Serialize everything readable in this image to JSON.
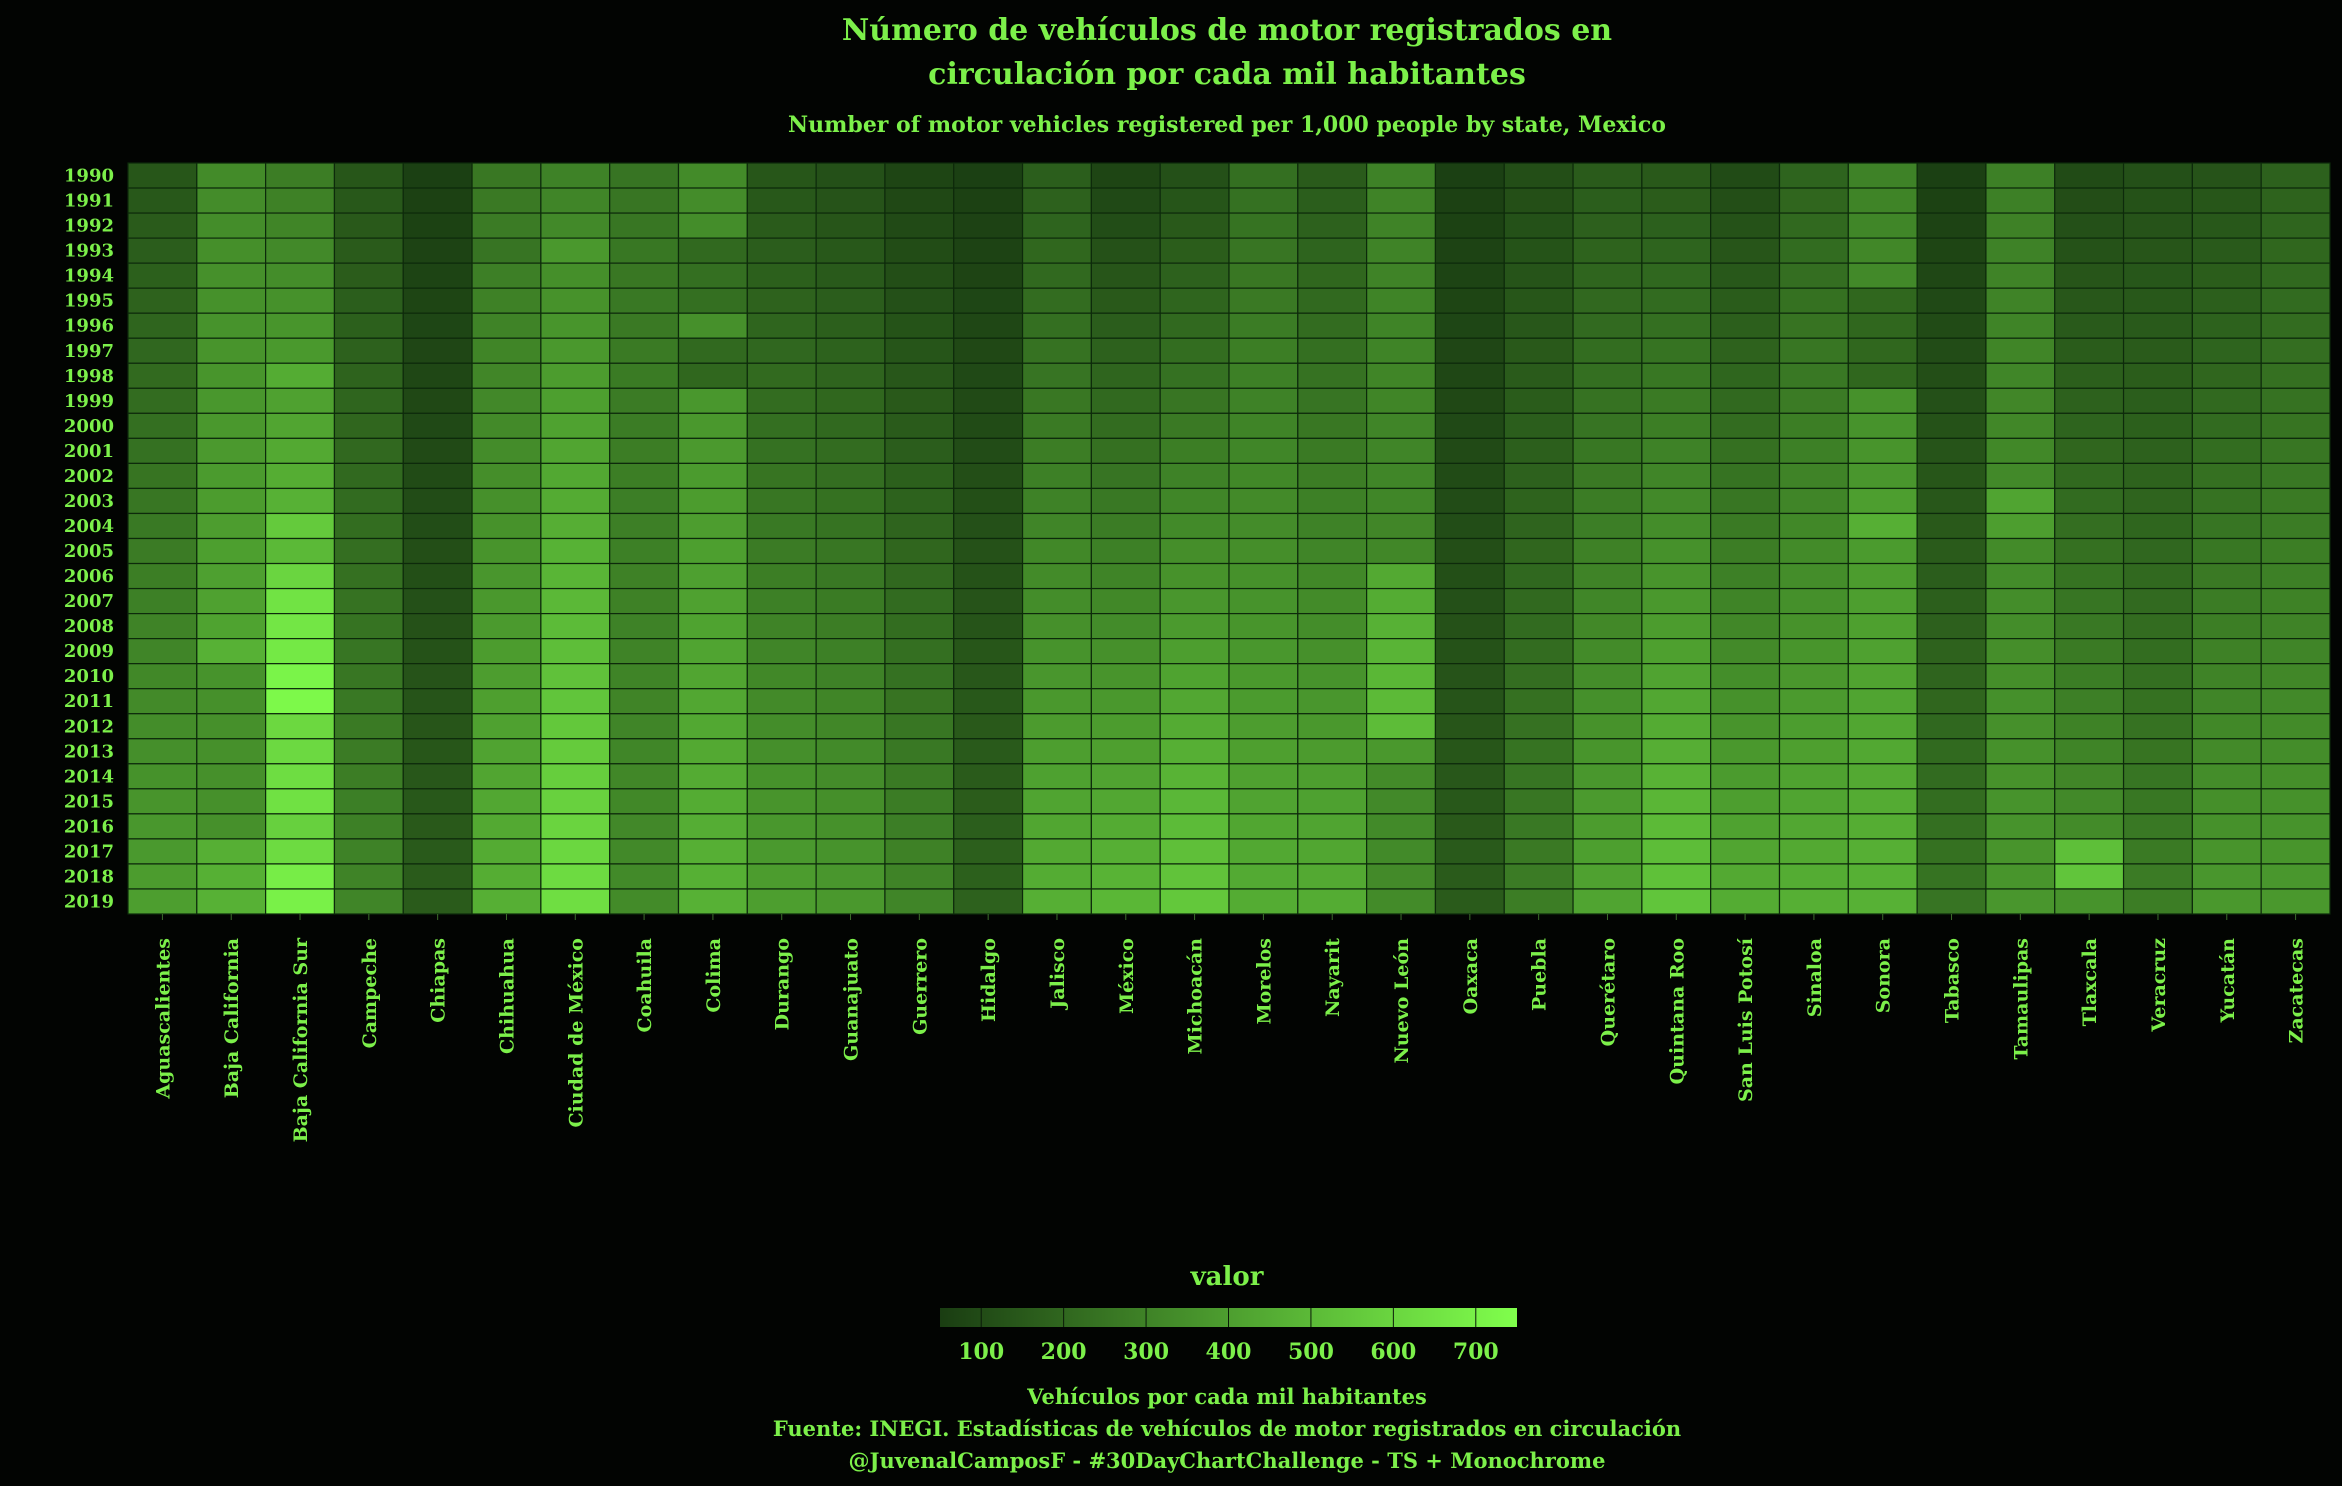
{
  "colors": {
    "background": "#020402",
    "text": "#7cf04a",
    "low": "#1a3d12",
    "high": "#80ff4c"
  },
  "chart_data": {
    "type": "heatmap",
    "title": "Número de vehículos de motor registrados en circulación por cada mil habitantes",
    "title_lines": [
      "Número de vehículos de motor registrados en",
      "circulación por cada mil habitantes"
    ],
    "subtitle": "Number of motor vehicles registered per 1,000 people by state, Mexico",
    "y": [
      "1990",
      "1991",
      "1992",
      "1993",
      "1994",
      "1995",
      "1996",
      "1997",
      "1998",
      "1999",
      "2000",
      "2001",
      "2002",
      "2003",
      "2004",
      "2005",
      "2006",
      "2007",
      "2008",
      "2009",
      "2010",
      "2011",
      "2012",
      "2013",
      "2014",
      "2015",
      "2016",
      "2017",
      "2018",
      "2019"
    ],
    "x": [
      "Aguascalientes",
      "Baja California",
      "Baja California Sur",
      "Campeche",
      "Chiapas",
      "Chihuahua",
      "Ciudad de México",
      "Coahuila",
      "Colima",
      "Durango",
      "Guanajuato",
      "Guerrero",
      "Hidalgo",
      "Jalisco",
      "México",
      "Michoacán",
      "Morelos",
      "Nayarit",
      "Nuevo León",
      "Oaxaca",
      "Puebla",
      "Querétaro",
      "Quintana Roo",
      "San Luis Potosí",
      "Sinaloa",
      "Sonora",
      "Tabasco",
      "Tamaulipas",
      "Tlaxcala",
      "Veracruz",
      "Yucatán",
      "Zacatecas"
    ],
    "start_end": {
      "Aguascalientes": [
        140,
        400
      ],
      "Baja California": [
        330,
        470
      ],
      "Baja California Sur": [
        280,
        700
      ],
      "Campeche": [
        140,
        310
      ],
      "Chiapas": [
        60,
        160
      ],
      "Chihuahua": [
        260,
        460
      ],
      "Ciudad de México": [
        300,
        630
      ],
      "Coahuila": [
        250,
        330
      ],
      "Colima": [
        330,
        470
      ],
      "Durango": [
        140,
        400
      ],
      "Guanajuato": [
        120,
        380
      ],
      "Guerrero": [
        80,
        310
      ],
      "Hidalgo": [
        60,
        180
      ],
      "Jalisco": [
        170,
        460
      ],
      "México": [
        80,
        490
      ],
      "Michoacán": [
        120,
        550
      ],
      "Morelos": [
        230,
        450
      ],
      "Nayarit": [
        160,
        450
      ],
      "Nuevo León": [
        300,
        330
      ],
      "Oaxaca": [
        60,
        160
      ],
      "Puebla": [
        110,
        280
      ],
      "Querétaro": [
        160,
        420
      ],
      "Quintana Roo": [
        150,
        540
      ],
      "San Luis Potosí": [
        100,
        450
      ],
      "Sinaloa": [
        190,
        460
      ],
      "Sonora": [
        300,
        470
      ],
      "Tabasco": [
        60,
        250
      ],
      "Tamaulipas": [
        290,
        370
      ],
      "Tlaxcala": [
        100,
        360
      ],
      "Veracruz": [
        120,
        280
      ],
      "Yucatán": [
        130,
        380
      ],
      "Zacatecas": [
        180,
        380
      ]
    },
    "overrides": {
      "Baja California Sur": {
        "1998": 450,
        "2004": 560,
        "2006": 600,
        "2007": 650,
        "2008": 660,
        "2009": 670,
        "2010": 710,
        "2011": 730,
        "2012": 610,
        "2016": 580,
        "2017": 620
      },
      "Baja California": {
        "2009": 470,
        "2010": 360,
        "2011": 350,
        "2012": 350,
        "2013": 350,
        "2014": 350,
        "2015": 350,
        "2016": 350
      },
      "Colima": {
        "1993": 210,
        "1994": 230,
        "1995": 230,
        "1996": 350,
        "1997": 210,
        "1998": 200
      },
      "Ciudad de México": {
        "1993": 380
      },
      "Nuevo León": {
        "2006": 440,
        "2007": 450,
        "2008": 470,
        "2009": 480,
        "2010": 490,
        "2011": 500,
        "2012": 510,
        "2013": 380,
        "2014": 330
      },
      "Sonora": {
        "1995": 200,
        "1996": 200,
        "1997": 200,
        "1998": 200,
        "2003": 400,
        "2004": 460,
        "2017": 460
      },
      "Tamaulipas": {
        "2003": 420,
        "2004": 400
      },
      "Tlaxcala": {
        "2017": 520,
        "2018": 540
      },
      "Chihuahua": {
        "1993": 250
      }
    },
    "value_range": [
      50,
      750
    ],
    "legend": {
      "title": "valor",
      "ticks": [
        100,
        200,
        300,
        400,
        500,
        600,
        700
      ]
    },
    "caption_lines": [
      "Vehículos por cada mil habitantes",
      "Fuente: INEGI. Estadísticas de vehículos de motor registrados en circulación",
      "@JuvenalCamposF - #30DayChartChallenge - TS + Monochrome"
    ]
  }
}
